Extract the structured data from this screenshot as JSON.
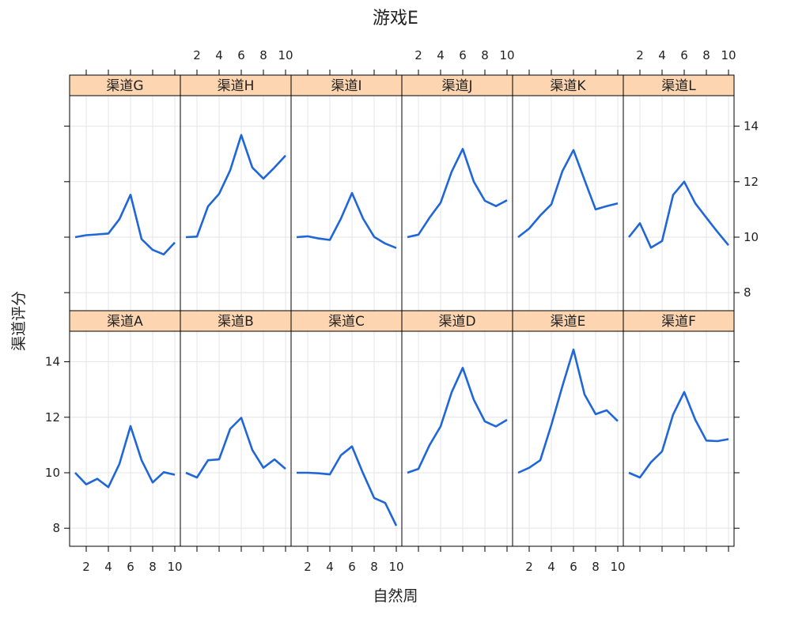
{
  "chart_data": {
    "type": "line",
    "title": "游戏E",
    "xlabel": "自然周",
    "ylabel": "渠道评分",
    "x": [
      1,
      2,
      3,
      4,
      5,
      6,
      7,
      8,
      9,
      10
    ],
    "xlim": [
      0.5,
      10.5
    ],
    "ylim": [
      7.35,
      15.1
    ],
    "xticks": [
      2,
      4,
      6,
      8,
      10
    ],
    "yticks": [
      8,
      10,
      12,
      14
    ],
    "grid": true,
    "line_color": "#1f66d9",
    "strip_color": "#fdd5b0",
    "layout": {
      "rows": 2,
      "cols": 6
    },
    "panels": [
      {
        "name": "渠道A",
        "values": [
          10.0,
          9.58,
          9.78,
          9.48,
          10.32,
          11.68,
          10.45,
          9.65,
          10.02,
          9.93
        ]
      },
      {
        "name": "渠道B",
        "values": [
          10.0,
          9.83,
          10.45,
          10.48,
          11.58,
          11.98,
          10.82,
          10.18,
          10.48,
          10.14
        ]
      },
      {
        "name": "渠道C",
        "values": [
          10.0,
          10.0,
          9.98,
          9.94,
          10.63,
          10.95,
          9.98,
          9.09,
          8.91,
          8.09
        ]
      },
      {
        "name": "渠道D",
        "values": [
          10.0,
          10.14,
          10.99,
          11.67,
          12.9,
          13.78,
          12.63,
          11.85,
          11.67,
          11.91
        ]
      },
      {
        "name": "渠道E",
        "values": [
          10.0,
          10.18,
          10.45,
          11.72,
          13.12,
          14.44,
          12.82,
          12.11,
          12.25,
          11.86
        ]
      },
      {
        "name": "渠道F",
        "values": [
          10.0,
          9.83,
          10.38,
          10.77,
          12.1,
          12.91,
          11.91,
          11.16,
          11.14,
          11.21
        ]
      },
      {
        "name": "渠道G",
        "values": [
          10.0,
          10.07,
          10.1,
          10.13,
          10.65,
          11.53,
          9.93,
          9.54,
          9.38,
          9.81
        ]
      },
      {
        "name": "渠道H",
        "values": [
          10.0,
          10.02,
          11.11,
          11.56,
          12.41,
          13.68,
          12.51,
          12.11,
          12.51,
          12.94
        ]
      },
      {
        "name": "渠道I",
        "values": [
          10.0,
          10.03,
          9.95,
          9.9,
          10.67,
          11.59,
          10.67,
          10.01,
          9.77,
          9.61
        ]
      },
      {
        "name": "渠道J",
        "values": [
          10.0,
          10.09,
          10.7,
          11.24,
          12.36,
          13.18,
          12.0,
          11.31,
          11.12,
          11.33
        ]
      },
      {
        "name": "渠道K",
        "values": [
          10.0,
          10.31,
          10.78,
          11.18,
          12.38,
          13.14,
          12.06,
          11.0,
          11.12,
          11.22
        ]
      },
      {
        "name": "渠道L",
        "values": [
          10.0,
          10.5,
          9.62,
          9.86,
          11.52,
          12.0,
          11.22,
          10.7,
          10.19,
          9.71
        ]
      }
    ]
  }
}
